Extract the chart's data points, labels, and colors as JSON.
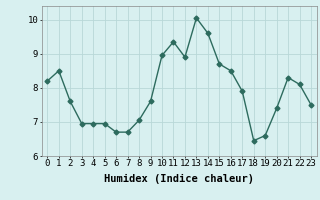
{
  "x": [
    0,
    1,
    2,
    3,
    4,
    5,
    6,
    7,
    8,
    9,
    10,
    11,
    12,
    13,
    14,
    15,
    16,
    17,
    18,
    19,
    20,
    21,
    22,
    23
  ],
  "y": [
    8.2,
    8.5,
    7.6,
    6.95,
    6.95,
    6.95,
    6.7,
    6.7,
    7.05,
    7.6,
    8.95,
    9.35,
    8.9,
    10.05,
    9.6,
    8.7,
    8.5,
    7.9,
    6.45,
    6.6,
    7.4,
    8.3,
    8.1,
    7.5
  ],
  "xlabel": "Humidex (Indice chaleur)",
  "ylim": [
    6,
    10.4
  ],
  "xlim": [
    -0.5,
    23.5
  ],
  "yticks": [
    6,
    7,
    8,
    9,
    10
  ],
  "xticks": [
    0,
    1,
    2,
    3,
    4,
    5,
    6,
    7,
    8,
    9,
    10,
    11,
    12,
    13,
    14,
    15,
    16,
    17,
    18,
    19,
    20,
    21,
    22,
    23
  ],
  "line_color": "#2d6b5e",
  "marker": "D",
  "marker_size": 2.5,
  "bg_color": "#d8f0f0",
  "grid_color": "#b8d8d8",
  "tick_fontsize": 6.5,
  "xlabel_fontsize": 7.5
}
